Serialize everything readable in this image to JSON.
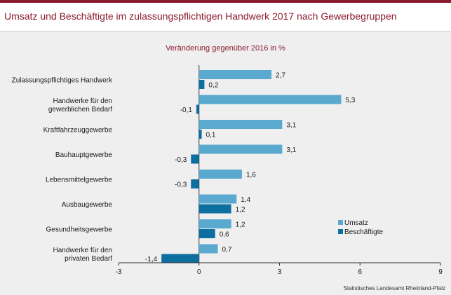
{
  "header": {
    "title": "Umsatz und Beschäftigte im zulassungspflichtigen Handwerk 2017 nach Gewerbegruppen"
  },
  "source": "Statistisches Landesamt Rheinland-Pfalz",
  "colors": {
    "brand": "#8b1a2f",
    "umsatz": "#5aa9cf",
    "beschaeftigte": "#0d6ea0"
  },
  "chart_data": {
    "type": "bar",
    "orientation": "horizontal",
    "subtitle": "Veränderung gegenüber 2016 in %",
    "categories": [
      [
        "Zulassungspflichtiges Handwerk"
      ],
      [
        "Handwerke für den",
        "gewerblichen Bedarf"
      ],
      [
        "Kraftfahrzeuggewerbe"
      ],
      [
        "Bauhauptgewerbe"
      ],
      [
        "Lebensmittelgewerbe"
      ],
      [
        "Ausbaugewerbe"
      ],
      [
        "Gesundheitsgewerbe"
      ],
      [
        "Handwerke für den",
        "privaten Bedarf"
      ]
    ],
    "series": [
      {
        "name": "Umsatz",
        "values": [
          2.7,
          5.3,
          3.1,
          3.1,
          1.6,
          1.4,
          1.2,
          0.7
        ]
      },
      {
        "name": "Beschäftigte",
        "values": [
          0.2,
          -0.1,
          0.1,
          -0.3,
          -0.3,
          1.2,
          0.6,
          -1.4
        ]
      }
    ],
    "value_labels": [
      [
        "2,7",
        "5,3",
        "3,1",
        "3,1",
        "1,6",
        "1,4",
        "1,2",
        "0,7"
      ],
      [
        "0,2",
        "-0,1",
        "0,1",
        "-0,3",
        "-0,3",
        "1,2",
        "0,6",
        "-1,4"
      ]
    ],
    "xlim": [
      -3,
      9
    ],
    "xticks": [
      -3,
      0,
      3,
      6,
      9
    ],
    "xtick_labels": [
      "-3",
      "0",
      "3",
      "6",
      "9"
    ],
    "legend_position": "right",
    "grid": false
  }
}
